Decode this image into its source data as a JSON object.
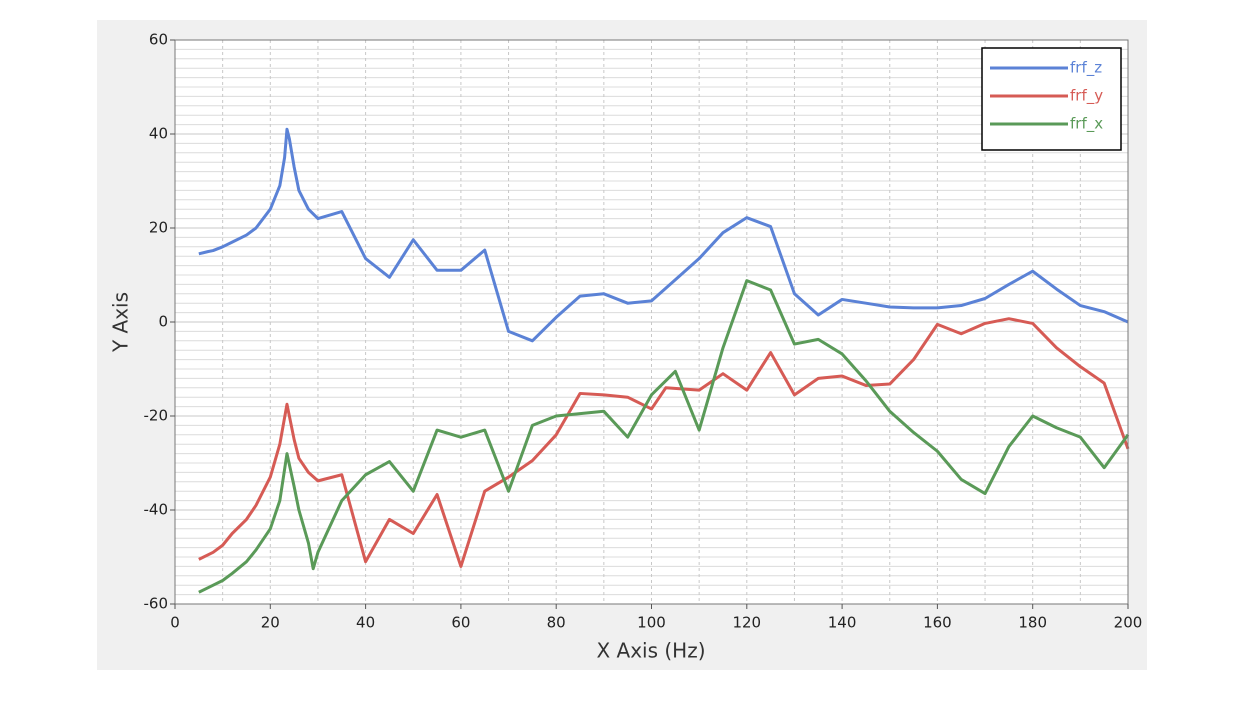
{
  "chart_data": {
    "type": "line",
    "x_label": "X Axis (Hz)",
    "y_label": "Y Axis",
    "xlim": [
      0,
      200
    ],
    "ylim": [
      -60,
      60
    ],
    "xticks": [
      0,
      20,
      40,
      60,
      80,
      100,
      120,
      140,
      160,
      180,
      200
    ],
    "yticks": [
      -60,
      -40,
      -20,
      0,
      20,
      40,
      60
    ],
    "minor_xticks": [
      10,
      30,
      50,
      70,
      90,
      110,
      130,
      150,
      170,
      190
    ],
    "minor_yticks": [
      -58,
      -56,
      -54,
      -52,
      -50,
      -48,
      -46,
      -44,
      -42,
      -38,
      -36,
      -34,
      -32,
      -30,
      -28,
      -26,
      -24,
      -22,
      -18,
      -16,
      -14,
      -12,
      -10,
      -8,
      -6,
      -4,
      -2,
      2,
      4,
      6,
      8,
      10,
      12,
      14,
      16,
      18,
      22,
      24,
      26,
      28,
      30,
      32,
      34,
      36,
      38,
      42,
      44,
      46,
      48,
      50,
      52,
      54,
      56,
      58
    ],
    "grid": true,
    "legend": "upper right",
    "series": [
      {
        "name": "frf_z",
        "color": "#5b82d6",
        "x": [
          5,
          7,
          8,
          10,
          12,
          15,
          17,
          20,
          22,
          23,
          23.5,
          24,
          25,
          26,
          28,
          30,
          35,
          40,
          45,
          50,
          55,
          60,
          65,
          70,
          75,
          80,
          85,
          90,
          95,
          100,
          105,
          110,
          115,
          120,
          125,
          130,
          135,
          140,
          145,
          150,
          155,
          160,
          165,
          170,
          175,
          180,
          185,
          190,
          195,
          200
        ],
        "values": [
          14.5,
          15,
          15.2,
          16,
          17,
          18.5,
          20,
          24,
          29,
          35,
          41,
          39,
          33,
          28,
          24,
          22,
          23.5,
          13.5,
          9.5,
          17.5,
          11,
          11,
          15.3,
          -2,
          -4,
          1,
          5.5,
          6,
          4,
          4.5,
          9,
          13.5,
          19,
          22.2,
          20.3,
          6,
          1.5,
          4.8,
          4,
          3.2,
          3,
          3,
          3.5,
          5,
          8,
          10.8,
          7,
          3.5,
          2.2,
          0
        ]
      },
      {
        "name": "frf_y",
        "color": "#d65b55",
        "x": [
          5,
          8,
          10,
          12,
          15,
          17,
          20,
          22,
          23.5,
          24,
          25,
          26,
          28,
          30,
          35,
          40,
          45,
          50,
          55,
          60,
          65,
          70,
          75,
          80,
          85,
          90,
          95,
          100,
          103,
          110,
          115,
          120,
          125,
          130,
          135,
          140,
          145,
          150,
          155,
          160,
          165,
          170,
          175,
          180,
          185,
          190,
          195,
          200
        ],
        "values": [
          -50.5,
          -49,
          -47.5,
          -45,
          -42,
          -39,
          -33,
          -26,
          -17.5,
          -20,
          -25,
          -29,
          -32,
          -33.8,
          -32.5,
          -51,
          -42,
          -45,
          -36.7,
          -52,
          -36,
          -33,
          -29.5,
          -24,
          -15.2,
          -15.5,
          -16,
          -18.5,
          -14,
          -14.5,
          -11,
          -14.5,
          -6.5,
          -15.5,
          -12,
          -11.5,
          -13.5,
          -13.2,
          -8,
          -0.5,
          -2.5,
          -0.3,
          0.7,
          -0.3,
          -5.5,
          -9.5,
          -13,
          -27
        ]
      },
      {
        "name": "frf_x",
        "color": "#5a9a58",
        "x": [
          5,
          7,
          10,
          12,
          15,
          17,
          20,
          22,
          23.5,
          25,
          26,
          28,
          29,
          30,
          35,
          40,
          45,
          50,
          55,
          60,
          65,
          70,
          75,
          80,
          85,
          90,
          95,
          100,
          105,
          110,
          115,
          120,
          125,
          130,
          135,
          140,
          145,
          150,
          155,
          160,
          165,
          170,
          175,
          180,
          185,
          190,
          195,
          200
        ],
        "values": [
          -57.5,
          -56.5,
          -55,
          -53.5,
          -51,
          -48.5,
          -44,
          -38,
          -28,
          -35,
          -40,
          -47,
          -52.5,
          -49,
          -38,
          -32.5,
          -29.7,
          -36,
          -23,
          -24.5,
          -23,
          -36,
          -22,
          -20,
          -19.5,
          -19,
          -24.5,
          -15.5,
          -10.5,
          -23,
          -5.5,
          8.8,
          6.8,
          -4.7,
          -3.7,
          -6.8,
          -12.5,
          -19,
          -23.5,
          -27.5,
          -33.5,
          -36.5,
          -26.5,
          -20,
          -22.5,
          -24.5,
          -31,
          -24
        ]
      }
    ]
  }
}
